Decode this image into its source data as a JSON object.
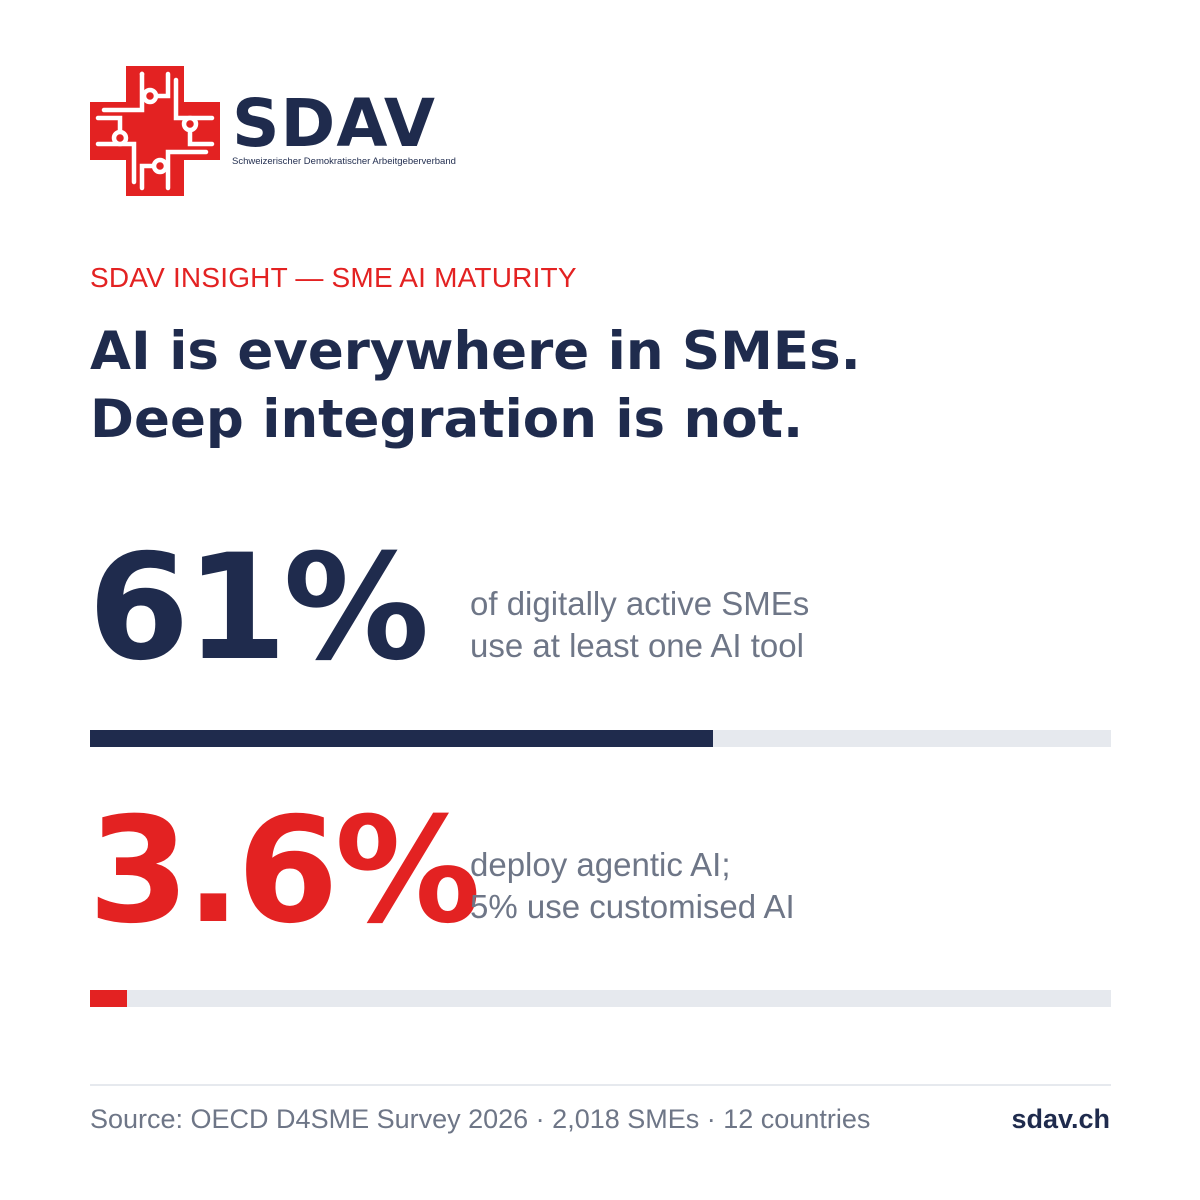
{
  "brand": {
    "name": "SDAV",
    "subtitle": "Schweizerischer Demokratischer Arbeitgeberverband",
    "logo_icon": "swiss-cross-circuit-icon"
  },
  "eyebrow": "SDAV INSIGHT — SME AI MATURITY",
  "headline": {
    "line1": "AI is everywhere in SMEs.",
    "line2": "Deep integration is not."
  },
  "stats": [
    {
      "value_label": "61%",
      "desc_line1": "of digitally active SMEs",
      "desc_line2": "use at least one AI tool"
    },
    {
      "value_label": "3.6%",
      "desc_line1": "deploy agentic AI;",
      "desc_line2": "5% use customised AI"
    }
  ],
  "footer": {
    "source": "Source: OECD D4SME Survey 2026 · 2,018 SMEs · 12 countries",
    "site": "sdav.ch"
  },
  "colors": {
    "navy": "#1f2b4d",
    "red": "#e32222",
    "track": "#e6e9ee",
    "muted": "#6e7687"
  },
  "chart_data": {
    "type": "bar",
    "title": "",
    "categories": [
      "of digitally active SMEs use at least one AI tool",
      "deploy agentic AI"
    ],
    "series": [
      {
        "values": [
          61,
          3.6
        ]
      }
    ],
    "unit": "%",
    "xlim": [
      0,
      100
    ],
    "bar_colors": [
      "#1f2b4d",
      "#e32222"
    ],
    "grid": false
  }
}
